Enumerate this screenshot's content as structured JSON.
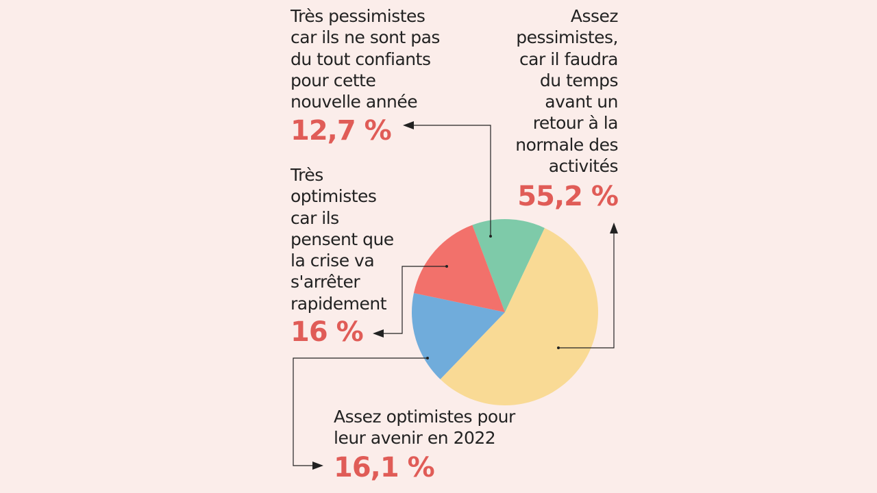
{
  "chart_data": {
    "type": "pie",
    "colors_note_free": true,
    "slices": [
      {
        "key": "tres_pessimistes",
        "lines": [
          "Très pessimistes",
          "car ils ne sont pas",
          "du tout confiants",
          "pour cette",
          "nouvelle année"
        ],
        "value": 12.7,
        "value_label": "12,7 %",
        "color": "#7ecaa9"
      },
      {
        "key": "assez_pessimistes",
        "lines": [
          "Assez",
          "pessimistes,",
          "car il faudra",
          "du temps",
          "avant un",
          "retour à la",
          "normale des",
          "activités"
        ],
        "value": 55.2,
        "value_label": "55,2 %",
        "color": "#f9da95"
      },
      {
        "key": "assez_optimistes",
        "lines": [
          "Assez optimistes pour",
          "leur avenir en 2022"
        ],
        "value": 16.1,
        "value_label": "16,1 %",
        "color": "#70acdb"
      },
      {
        "key": "tres_optimistes",
        "lines": [
          "Très",
          "optimistes",
          "car ils",
          "pensent que",
          "la crise va",
          "s'arrêter",
          "rapidement"
        ],
        "value": 16,
        "value_label": "16 %",
        "color": "#f2716b"
      }
    ],
    "start_angle_deg": 339.5,
    "direction": "clockwise",
    "value_text_color": "#e05c57"
  }
}
